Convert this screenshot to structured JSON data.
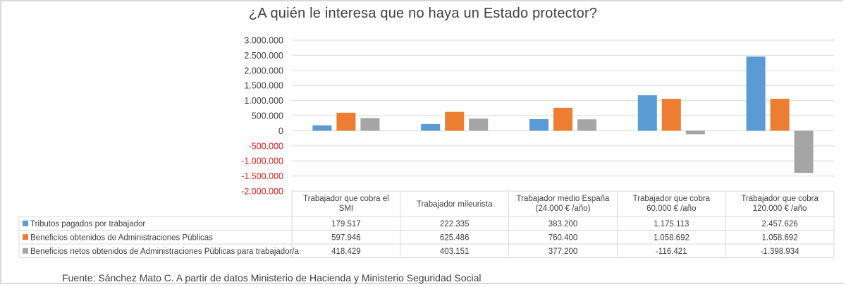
{
  "chart_data": {
    "type": "bar",
    "title": "¿A quién le interesa que no haya un Estado protector?",
    "categories": [
      [
        "Trabajador que cobra el",
        "SMI"
      ],
      [
        "Trabajador mileurista"
      ],
      [
        "Trabajador medio España",
        "(24.000 € /año)"
      ],
      [
        "Trabajador que cobra",
        "60.000 € /año"
      ],
      [
        "Trabajador que cobra",
        "120.000 € /año"
      ]
    ],
    "ylim": [
      -2000000,
      3000000
    ],
    "yticks": [
      {
        "value": 3000000,
        "label": "3.000.000"
      },
      {
        "value": 2500000,
        "label": "2.500.000"
      },
      {
        "value": 2000000,
        "label": "2.000.000"
      },
      {
        "value": 1500000,
        "label": "1.500.000"
      },
      {
        "value": 1000000,
        "label": "1.000.000"
      },
      {
        "value": 500000,
        "label": "500.000"
      },
      {
        "value": 0,
        "label": "0"
      },
      {
        "value": -500000,
        "label": "-500.000"
      },
      {
        "value": -1000000,
        "label": "-1.000.000"
      },
      {
        "value": -1500000,
        "label": "-1.500.000"
      },
      {
        "value": -2000000,
        "label": "-2.000.000"
      }
    ],
    "series": [
      {
        "name": "Tributos pagados por trabajador",
        "color": "#5b9bd5",
        "values": [
          179517,
          222335,
          383200,
          1175113,
          2457626
        ],
        "labels": [
          "179.517",
          "222.335",
          "383.200",
          "1.175.113",
          "2.457.626"
        ]
      },
      {
        "name": "Beneficios obtenidos de Administraciones Públicas",
        "color": "#ed7d31",
        "values": [
          597946,
          625486,
          760400,
          1058692,
          1058692
        ],
        "labels": [
          "597.946",
          "625.486",
          "760.400",
          "1.058.692",
          "1.058.692"
        ]
      },
      {
        "name": "Beneficios netos obtenidos de Administraciones Públicas para trabajador/a",
        "color": "#a5a5a5",
        "values": [
          418429,
          403151,
          377200,
          -116421,
          -1398934
        ],
        "labels": [
          "418.429",
          "403.151",
          "377.200",
          "-116.421",
          "-1.398.934"
        ]
      }
    ],
    "legend": "data-table",
    "negative_tick_color": "#e8211d",
    "source": "Fuente: Sánchez Mato C. A partir de datos Ministerio de Hacienda y Ministerio Seguridad Social"
  }
}
